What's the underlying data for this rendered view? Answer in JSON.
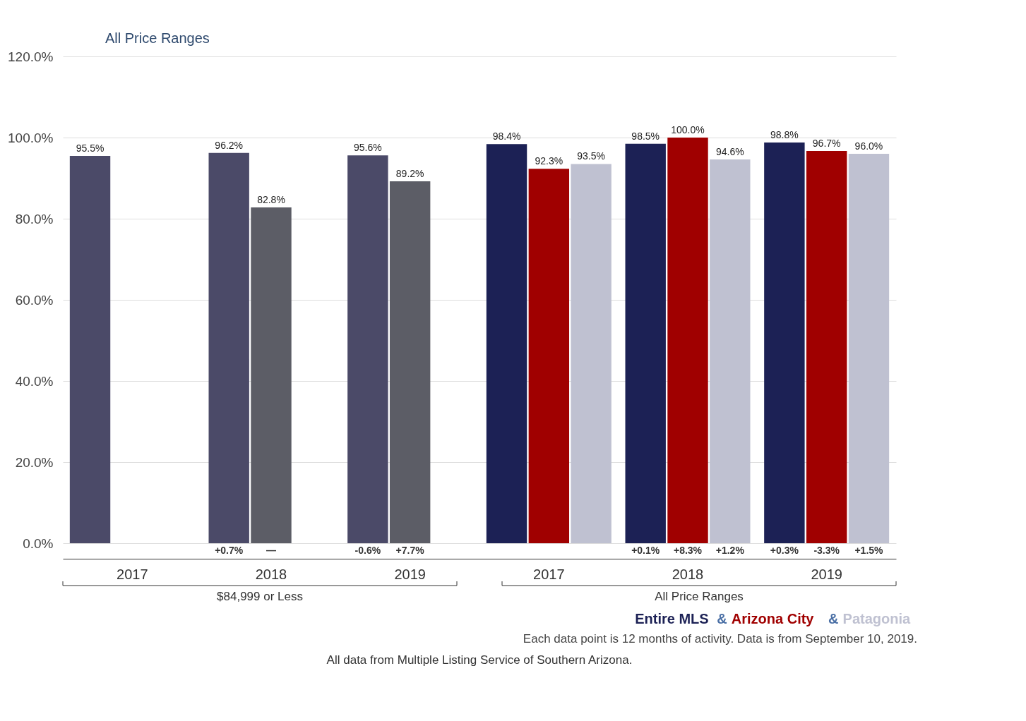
{
  "chart_data": {
    "type": "bar",
    "categories": [
      "2017",
      "2018",
      "2019",
      "2017",
      "2018",
      "2019"
    ],
    "series": [
      {
        "name": "Entire MLS",
        "color": "#1c2155",
        "colors": [
          "#4b4a68",
          "#4b4a68",
          "#4b4a68",
          "#1c2155",
          "#1c2155",
          "#1c2155"
        ],
        "values": [
          95.5,
          96.2,
          95.6,
          98.4,
          98.5,
          98.8
        ],
        "value_labels": [
          "95.5%",
          "96.2%",
          "95.6%",
          "98.4%",
          "98.5%",
          "98.8%"
        ]
      },
      {
        "name": "Arizona City",
        "color": "#a00000",
        "colors": [
          "#5c5d66",
          "#5c5d66",
          "#5c5d66",
          "#a00000",
          "#a00000",
          "#a00000"
        ],
        "values": [
          null,
          82.8,
          89.2,
          92.3,
          100.0,
          96.7
        ],
        "value_labels": [
          null,
          "82.8%",
          "89.2%",
          "92.3%",
          "100.0%",
          "96.7%"
        ]
      },
      {
        "name": "Patagonia",
        "color": "#bfc1d1",
        "colors": [
          "#bfc1d1",
          "#bfc1d1",
          "#bfc1d1",
          "#bfc1d1",
          "#bfc1d1",
          "#bfc1d1"
        ],
        "values": [
          null,
          null,
          null,
          93.5,
          94.6,
          96.0
        ],
        "value_labels": [
          null,
          null,
          null,
          "93.5%",
          "94.6%",
          "96.0%"
        ]
      }
    ],
    "ylim": [
      0,
      120
    ],
    "yticks": [
      {
        "value": 0,
        "label": "0.0%"
      },
      {
        "value": 20,
        "label": "20.0%"
      },
      {
        "value": 40,
        "label": "40.0%"
      },
      {
        "value": 60,
        "label": "60.0%"
      },
      {
        "value": 80,
        "label": "80.0%"
      },
      {
        "value": 100,
        "label": "100.0%"
      },
      {
        "value": 120,
        "label": "120.0%"
      }
    ],
    "grid": "y",
    "legend": "bottom right",
    "annotations": [
      "$84,999 or Less",
      "All Price Ranges",
      "All Price Ranges",
      "&",
      "Each data point is 12 months of activity. Data is from September 10, 2019.",
      "All data from Multiple Listing Service of Southern Arizona.",
      "+0.7%",
      "—",
      "-0.6%",
      "+7.7%",
      "+0.1%",
      "+8.3%",
      "+1.2%",
      "+0.3%",
      "-3.3%",
      "+1.5%"
    ]
  }
}
